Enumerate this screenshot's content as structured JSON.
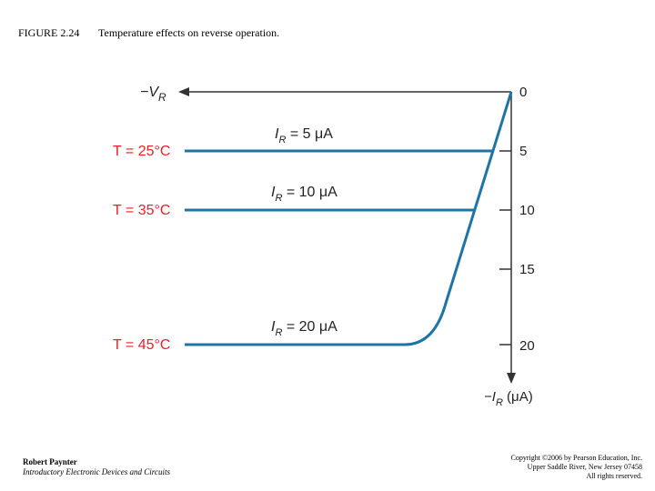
{
  "figure": {
    "label": "FIGURE 2.24",
    "caption": "Temperature effects on reverse operation."
  },
  "diagram": {
    "x_axis_label": {
      "main": "−V",
      "sub": "R"
    },
    "y_axis_label": {
      "main": "−I",
      "sub": "R",
      "rest": " (μA)"
    },
    "y_tick_labels": [
      "0",
      "5",
      "10",
      "15",
      "20"
    ],
    "curves": [
      {
        "temperature": "T = 25°C",
        "current": {
          "main": "I",
          "sub": "R",
          "rest": " = 5 μA"
        }
      },
      {
        "temperature": "T = 35°C",
        "current": {
          "main": "I",
          "sub": "R",
          "rest": " = 10 μA"
        }
      },
      {
        "temperature": "T = 45°C",
        "current": {
          "main": "I",
          "sub": "R",
          "rest": " = 20 μA"
        }
      }
    ]
  },
  "footer": {
    "author": "Robert Paynter",
    "book": "Introductory Electronic Devices and Circuits",
    "copyright": [
      "Copyright ©2006 by Pearson Education, Inc.",
      "Upper Saddle River, New Jersey 07458",
      "All rights reserved."
    ]
  }
}
